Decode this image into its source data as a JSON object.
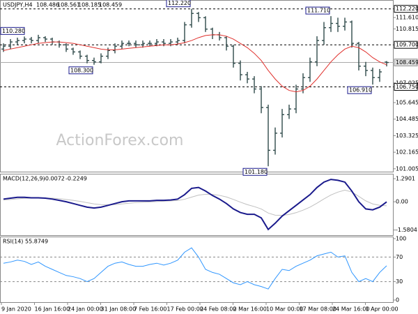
{
  "chart_data": {
    "type": "ohlc",
    "title": "USDJPY,H4",
    "quote": [
      108.486,
      108.561,
      108.185,
      108.459
    ],
    "watermark": "ActionForex.com",
    "color": "#2f4a4a",
    "open": [
      109.4,
      109.6,
      109.9,
      110.0,
      110.1,
      110.0,
      110.2,
      110.1,
      109.9,
      109.7,
      109.4,
      109.2,
      108.9,
      108.6,
      108.5,
      108.9,
      109.3,
      109.6,
      109.8,
      109.8,
      109.7,
      109.8,
      109.8,
      109.9,
      109.8,
      109.9,
      110.0,
      111.1,
      111.9,
      111.6,
      110.8,
      110.4,
      110.2,
      109.6,
      108.4,
      107.6,
      107.3,
      106.6,
      105.3,
      102.3,
      103.5,
      104.8,
      105.2,
      106.6,
      107.4,
      108.5,
      110.0,
      110.9,
      111.2,
      111.0,
      111.3,
      109.8,
      108.2,
      107.9,
      107.4,
      108.486
    ],
    "high": [
      109.8,
      110.1,
      110.2,
      110.28,
      110.25,
      110.4,
      110.3,
      110.2,
      110.0,
      109.8,
      109.5,
      109.3,
      109.0,
      108.8,
      109.1,
      109.5,
      109.8,
      110.0,
      110.0,
      110.0,
      110.0,
      110.0,
      110.1,
      110.1,
      110.1,
      110.2,
      111.3,
      112.22,
      112.0,
      111.7,
      110.9,
      110.6,
      110.3,
      109.7,
      108.6,
      107.8,
      107.5,
      106.8,
      105.5,
      103.9,
      105.2,
      105.5,
      106.9,
      107.7,
      108.8,
      110.3,
      111.3,
      111.71,
      111.6,
      111.6,
      111.4,
      109.9,
      108.5,
      108.1,
      108.0,
      108.561
    ],
    "low": [
      109.2,
      109.4,
      109.7,
      109.8,
      109.8,
      109.8,
      109.9,
      109.7,
      109.5,
      109.2,
      109.0,
      108.7,
      108.4,
      108.3,
      108.4,
      108.7,
      109.1,
      109.4,
      109.6,
      109.5,
      109.5,
      109.6,
      109.6,
      109.6,
      109.6,
      109.7,
      109.8,
      110.9,
      111.3,
      110.6,
      110.1,
      110.0,
      109.3,
      108.1,
      107.2,
      107.0,
      106.3,
      104.9,
      101.18,
      102.0,
      103.2,
      104.5,
      104.9,
      106.3,
      107.1,
      108.2,
      109.7,
      110.6,
      110.6,
      110.7,
      109.5,
      107.9,
      107.5,
      106.91,
      107.1,
      108.185
    ],
    "close": [
      109.6,
      109.9,
      110.0,
      110.1,
      110.0,
      110.2,
      110.1,
      109.9,
      109.7,
      109.4,
      109.2,
      108.9,
      108.6,
      108.5,
      108.9,
      109.3,
      109.6,
      109.8,
      109.8,
      109.7,
      109.8,
      109.8,
      109.9,
      109.8,
      109.9,
      110.0,
      111.1,
      111.9,
      111.6,
      110.8,
      110.4,
      110.2,
      109.6,
      108.4,
      107.6,
      107.3,
      106.6,
      105.3,
      102.3,
      103.5,
      104.8,
      105.2,
      106.6,
      107.4,
      108.5,
      110.0,
      110.9,
      111.2,
      111.0,
      111.3,
      109.8,
      108.2,
      107.9,
      107.4,
      107.8,
      108.459
    ],
    "ma": {
      "color": "#e0302c",
      "values": [
        109.3,
        109.4,
        109.5,
        109.6,
        109.7,
        109.8,
        109.85,
        109.9,
        109.9,
        109.85,
        109.8,
        109.7,
        109.6,
        109.5,
        109.4,
        109.35,
        109.35,
        109.4,
        109.45,
        109.5,
        109.55,
        109.6,
        109.65,
        109.7,
        109.7,
        109.75,
        109.85,
        110.0,
        110.2,
        110.35,
        110.4,
        110.4,
        110.3,
        110.1,
        109.8,
        109.5,
        109.1,
        108.6,
        107.9,
        107.3,
        106.8,
        106.5,
        106.4,
        106.5,
        106.8,
        107.3,
        107.9,
        108.5,
        109.0,
        109.4,
        109.6,
        109.5,
        109.2,
        108.8,
        108.5,
        108.3
      ]
    },
    "ylim": [
      100.9,
      112.45
    ],
    "yticks": [
      101.005,
      102.165,
      103.325,
      104.485,
      105.645,
      107.025,
      110.815,
      {
        "value": 111.61,
        "label": "111.610"
      }
    ],
    "levels": [
      {
        "value": 112.22,
        "label": "112.220"
      },
      {
        "value": 109.7,
        "label": "109.700"
      },
      {
        "value": 106.75,
        "label": "106.750"
      }
    ],
    "annotations": [
      {
        "value": 110.28,
        "label": "110.280"
      },
      {
        "value": 108.3,
        "label": "108.300"
      },
      {
        "value": 112.22,
        "label": "112.220"
      },
      {
        "value": 111.71,
        "label": "111.710"
      },
      {
        "value": 101.18,
        "label": "101.180"
      },
      {
        "value": 106.91,
        "label": "106.910"
      }
    ],
    "x_labels": [
      "9 Jan 2020",
      "16 Jan 16:00",
      "24 Jan 00:00",
      "31 Jan 08:00",
      "7 Feb 16:00",
      "17 Feb 00:00",
      "24 Feb 08:00",
      "2 Mar 16:00",
      "10 Mar 00:00",
      "17 Mar 08:00",
      "24 Mar 16:00",
      "1 Apr 00:00"
    ],
    "macd": {
      "title": "MACD(12,26,9)",
      "ylim": [
        -1.75,
        1.45
      ],
      "yticks": [
        1.2901,
        {
          "value": 0,
          "label": "0.00"
        },
        -1.5804
      ],
      "series": [
        {
          "color": "#1a1a8c",
          "values": [
            0.15,
            0.2,
            0.25,
            0.25,
            0.22,
            0.22,
            0.2,
            0.15,
            0.08,
            0.0,
            -0.1,
            -0.2,
            -0.3,
            -0.35,
            -0.3,
            -0.2,
            -0.1,
            0.0,
            0.05,
            0.05,
            0.05,
            0.05,
            0.08,
            0.08,
            0.1,
            0.15,
            0.4,
            0.75,
            0.8,
            0.6,
            0.35,
            0.15,
            -0.1,
            -0.4,
            -0.6,
            -0.7,
            -0.7,
            -0.9,
            -1.55,
            -1.2,
            -0.8,
            -0.5,
            -0.2,
            0.1,
            0.4,
            0.8,
            1.1,
            1.25,
            1.2,
            1.1,
            0.6,
            0.0,
            -0.4,
            -0.45,
            -0.3,
            -0.0072
          ]
        },
        {
          "color": "#c0c0c0",
          "values": [
            0.1,
            0.13,
            0.16,
            0.19,
            0.2,
            0.21,
            0.21,
            0.2,
            0.17,
            0.13,
            0.08,
            0.02,
            -0.05,
            -0.12,
            -0.16,
            -0.17,
            -0.16,
            -0.12,
            -0.08,
            -0.05,
            -0.03,
            -0.01,
            0.01,
            0.03,
            0.05,
            0.07,
            0.14,
            0.26,
            0.37,
            0.42,
            0.41,
            0.36,
            0.27,
            0.13,
            -0.02,
            -0.16,
            -0.27,
            -0.4,
            -0.63,
            -0.75,
            -0.76,
            -0.71,
            -0.61,
            -0.47,
            -0.3,
            -0.08,
            0.16,
            0.38,
            0.54,
            0.65,
            0.55,
            0.3,
            0.05,
            -0.12,
            -0.2,
            -0.2249
          ]
        }
      ]
    },
    "rsi": {
      "title": "RSI(14)",
      "ylim": [
        0,
        100
      ],
      "yticks": [
        100,
        70,
        30,
        0
      ],
      "color": "#2f96ff",
      "values": [
        60,
        62,
        65,
        63,
        58,
        62,
        55,
        50,
        45,
        40,
        38,
        35,
        30,
        35,
        45,
        55,
        60,
        62,
        58,
        55,
        55,
        58,
        60,
        57,
        60,
        65,
        78,
        85,
        70,
        50,
        45,
        42,
        35,
        28,
        25,
        30,
        25,
        22,
        18,
        35,
        50,
        48,
        55,
        60,
        65,
        72,
        75,
        78,
        70,
        72,
        45,
        30,
        35,
        30,
        45,
        55.8749
      ]
    }
  }
}
